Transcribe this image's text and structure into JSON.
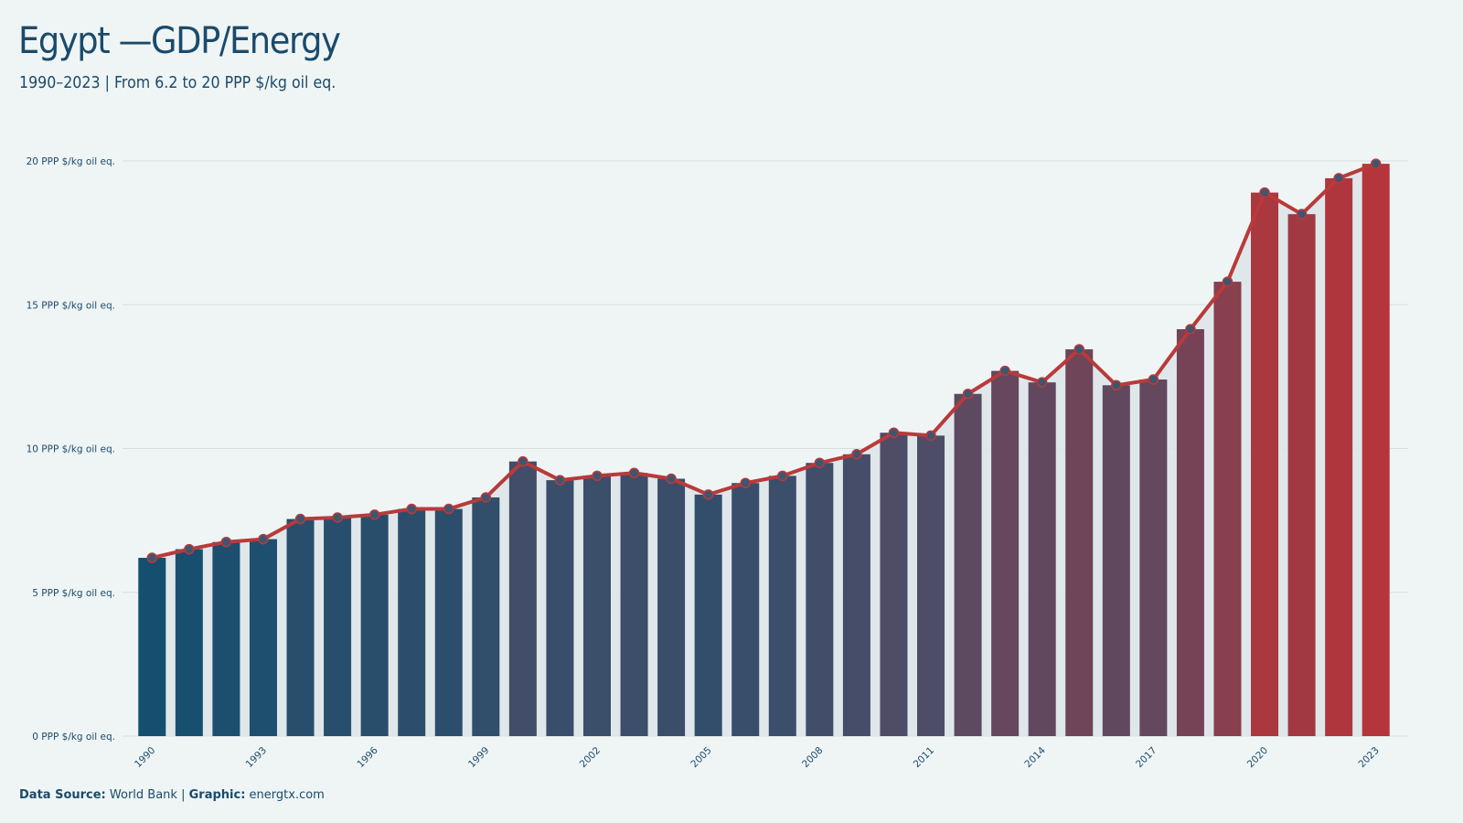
{
  "header": {
    "title": "Egypt —GDP/Energy",
    "subtitle": "1990–2023 | From 6.2 to 20 PPP $/kg oil eq."
  },
  "footer": {
    "source_label": "Data Source:",
    "source_value": "World Bank",
    "separator": "|",
    "graphic_label": "Graphic:",
    "graphic_value": "energtx.com"
  },
  "colors": {
    "background": "#eff5f5",
    "text": "#1b4a6b",
    "bar_start": "#154f6f",
    "bar_mid": "#4c4d68",
    "bar_end": "#b4353a",
    "line": "#b93a3a",
    "marker": "#3f5570",
    "area": "#dde5ea",
    "grid": "#d5dede"
  },
  "chart_data": {
    "type": "bar",
    "title": "Egypt —GDP/Energy",
    "subtitle": "1990–2023 | From 6.2 to 20 PPP $/kg oil eq.",
    "xlabel": "",
    "ylabel": "",
    "ylim": [
      0,
      20
    ],
    "yticks": [
      0,
      5,
      10,
      15,
      20
    ],
    "ytick_labels": [
      "0 PPP $/kg oil eq.",
      "5 PPP $/kg oil eq.",
      "10 PPP $/kg oil eq.",
      "15 PPP $/kg oil eq.",
      "20 PPP $/kg oil eq."
    ],
    "xtick_labels": [
      "1990",
      "1993",
      "1996",
      "1999",
      "2002",
      "2005",
      "2008",
      "2011",
      "2014",
      "2017",
      "2020",
      "2023"
    ],
    "grid": true,
    "categories": [
      "1990",
      "1991",
      "1992",
      "1993",
      "1994",
      "1995",
      "1996",
      "1997",
      "1998",
      "1999",
      "2000",
      "2001",
      "2002",
      "2003",
      "2004",
      "2005",
      "2006",
      "2007",
      "2008",
      "2009",
      "2010",
      "2011",
      "2012",
      "2013",
      "2014",
      "2015",
      "2016",
      "2017",
      "2018",
      "2019",
      "2020",
      "2021",
      "2022",
      "2023"
    ],
    "values": [
      6.2,
      6.5,
      6.75,
      6.85,
      7.55,
      7.6,
      7.7,
      7.9,
      7.9,
      8.3,
      9.55,
      8.9,
      9.05,
      9.15,
      8.95,
      8.4,
      8.8,
      9.05,
      9.5,
      9.8,
      10.55,
      10.45,
      11.9,
      12.7,
      12.3,
      13.45,
      12.2,
      12.4,
      14.15,
      15.8,
      18.9,
      18.15,
      19.4,
      19.9
    ],
    "overlay": [
      "line",
      "area",
      "markers"
    ]
  }
}
